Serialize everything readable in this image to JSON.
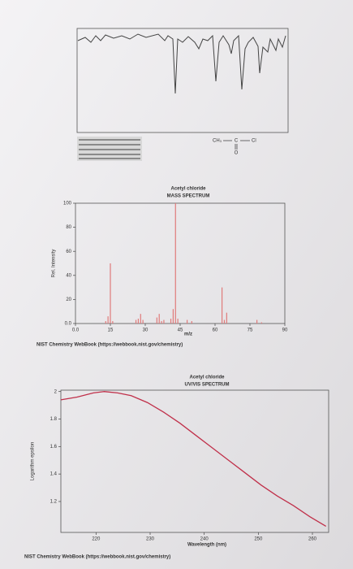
{
  "structure": {
    "left": "CH₃",
    "center": "C",
    "right": "Cl",
    "bottom": "O"
  },
  "chart_data": [
    {
      "type": "bar",
      "title": "Acetyl chloride",
      "subtitle": "MASS SPECTRUM",
      "x_label": "m/z",
      "y_label": "Rel. Intensity",
      "source": "NIST Chemistry WebBook (https://webbook.nist.gov/chemistry)",
      "x": [
        13,
        14,
        15,
        16,
        26,
        27,
        28,
        29,
        35,
        36,
        37,
        38,
        41,
        42,
        43,
        44,
        48,
        50,
        63,
        64,
        65,
        78,
        80
      ],
      "values": [
        2,
        6,
        50,
        2,
        3,
        4,
        8,
        3,
        5,
        8,
        2,
        3,
        4,
        12,
        100,
        4,
        3,
        2,
        30,
        3,
        9,
        3,
        1
      ],
      "color": "#e07a7a",
      "xlim": [
        0,
        90
      ],
      "ylim": [
        0,
        100
      ],
      "xticks": [
        {
          "value": 0,
          "label": "0.0"
        },
        15,
        30,
        45,
        60,
        75,
        90
      ],
      "yticks": [
        {
          "value": 0,
          "label": "0.0"
        },
        20,
        40,
        60,
        80,
        100
      ]
    },
    {
      "type": "line",
      "title": "Acetyl chloride",
      "subtitle": "UV/VIS SPECTRUM",
      "x_label": "Wavelength (nm)",
      "y_label": "Logarithm epsilon",
      "source": "NIST Chemistry WebBook (https://webbook.nist.gov/chemistry)",
      "x": [
        213.5,
        216.5,
        219.5,
        221.5,
        224,
        226.5,
        229.5,
        232.5,
        235.5,
        238.5,
        241.5,
        244.5,
        247.5,
        250.5,
        253.5,
        256.5,
        259.5,
        262.5
      ],
      "values": [
        1.94,
        1.96,
        1.99,
        2.0,
        1.99,
        1.97,
        1.92,
        1.85,
        1.77,
        1.68,
        1.59,
        1.5,
        1.41,
        1.32,
        1.24,
        1.17,
        1.09,
        1.02
      ],
      "color": "#c0304a",
      "xlim": [
        213.5,
        263
      ],
      "ylim": [
        0.975,
        2.01
      ],
      "xticks": [
        220,
        230,
        240,
        250,
        260
      ],
      "yticks": [
        1.2,
        1.4,
        1.6,
        1.8,
        2
      ]
    }
  ]
}
